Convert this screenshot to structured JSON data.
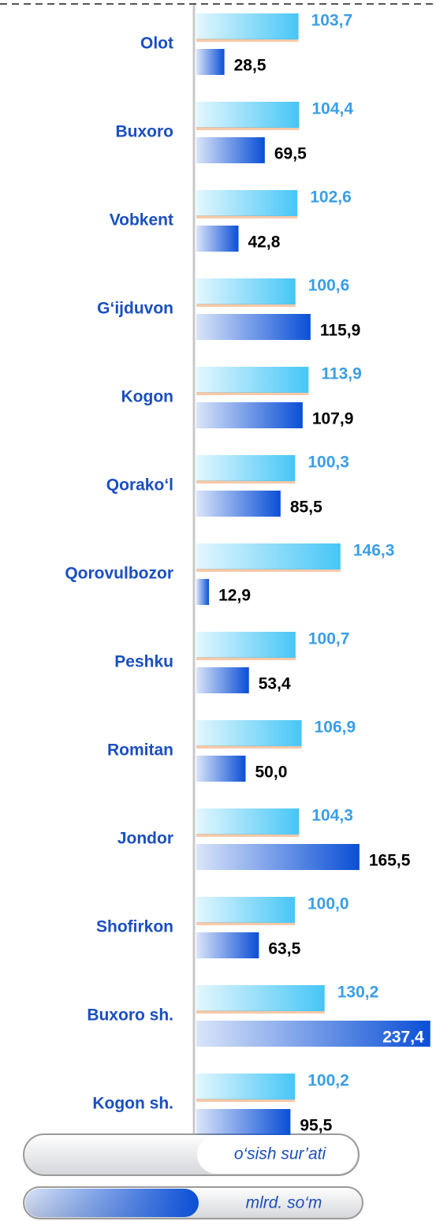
{
  "chart_data": {
    "type": "bar",
    "orientation": "horizontal",
    "categories": [
      "Olot",
      "Buxoro",
      "Vobkent",
      "G‘ijduvon",
      "Kogon",
      "Qorako‘l",
      "Qorovulbozor",
      "Peshku",
      "Romitan",
      "Jondor",
      "Shofirkon",
      "Buxoro sh.",
      "Kogon sh."
    ],
    "series": [
      {
        "name": "o‘sish sur’ati",
        "color": "#46c6f6",
        "values": [
          103.7,
          104.4,
          102.6,
          100.6,
          113.9,
          100.3,
          146.3,
          100.7,
          106.9,
          104.3,
          100.0,
          130.2,
          100.2
        ],
        "value_labels": [
          "103,7",
          "104,4",
          "102,6",
          "100,6",
          "113,9",
          "100,3",
          "146,3",
          "100,7",
          "106,9",
          "104,3",
          "100,0",
          "130,2",
          "100,2"
        ]
      },
      {
        "name": "mlrd. so‘m",
        "color": "#0a4fd6",
        "values": [
          28.5,
          69.5,
          42.8,
          115.9,
          107.9,
          85.5,
          12.9,
          53.4,
          50.0,
          165.5,
          63.5,
          237.4,
          95.5
        ],
        "value_labels": [
          "28,5",
          "69,5",
          "42,8",
          "115,9",
          "107,9",
          "85,5",
          "12,9",
          "53,4",
          "50,0",
          "165,5",
          "63,5",
          "237,4",
          "95,5"
        ]
      }
    ],
    "xlim": [
      0,
      240
    ]
  }
}
